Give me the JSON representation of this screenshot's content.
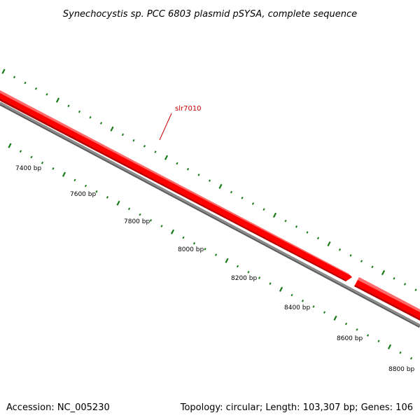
{
  "title": "Synechocystis sp. PCC 6803 plasmid pSYSA, complete sequence",
  "footer": {
    "accession": "Accession: NC_005230",
    "summary": "Topology: circular; Length: 103,307 bp; Genes: 106"
  },
  "colors": {
    "gene_fill": "#ff0000",
    "gene_highlight": "#ff6a6a",
    "gene_shadow": "#b30000",
    "backbone": "#808080",
    "backbone_dark": "#5a5a5a",
    "tick": "#1a7a1a",
    "gene_label": "#cc0000"
  },
  "gene_label": "slr7010",
  "ticks": [
    {
      "label": "7400 bp"
    },
    {
      "label": "7600 bp"
    },
    {
      "label": "7800 bp"
    },
    {
      "label": "8000 bp"
    },
    {
      "label": "8200 bp"
    },
    {
      "label": "8400 bp"
    },
    {
      "label": "8600 bp"
    },
    {
      "label": "8800 bp"
    }
  ]
}
